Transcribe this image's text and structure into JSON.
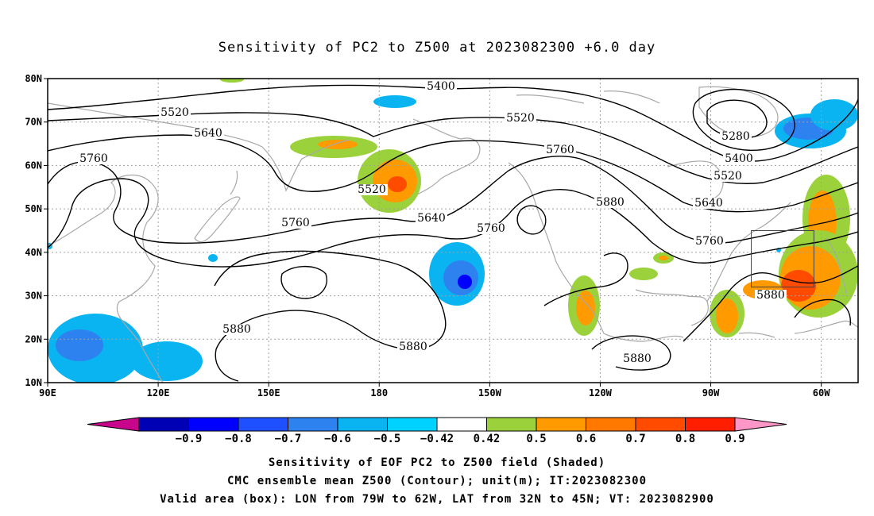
{
  "title": "Sensitivity of PC2 to Z500 at 2023082300 +6.0 day",
  "captions": [
    "Sensitivity of EOF PC2 to Z500 field (Shaded)",
    "CMC ensemble mean Z500 (Contour); unit(m); IT:2023082300",
    "Valid area (box): LON from 79W to 62W, LAT from 32N to 45N; VT: 2023082900"
  ],
  "map": {
    "lon_ticks": [
      "90E",
      "120E",
      "150E",
      "180",
      "150W",
      "120W",
      "90W",
      "60W"
    ],
    "lat_ticks": [
      "80N",
      "70N",
      "60N",
      "50N",
      "40N",
      "30N",
      "20N",
      "10N"
    ],
    "valid_box": {
      "lon_min": -79,
      "lon_max": -62,
      "lat_min": 32,
      "lat_max": 45
    },
    "contour_labels": [
      "5400",
      "5520",
      "5520",
      "5640",
      "5760",
      "5760",
      "5520",
      "5640",
      "5760",
      "5760",
      "5880",
      "5280",
      "5400",
      "5520",
      "5640",
      "5760",
      "5880",
      "5880",
      "5880",
      "5880"
    ],
    "grid": true
  },
  "colorbar": {
    "labels": [
      "-0.9",
      "-0.8",
      "-0.7",
      "-0.6",
      "-0.5",
      "-0.42",
      "0.42",
      "0.5",
      "0.6",
      "0.7",
      "0.8",
      "0.9"
    ],
    "colors": [
      "#c8068c",
      "#0000b4",
      "#0000ff",
      "#1e50ff",
      "#2d82f0",
      "#0ab4f0",
      "#00d2ff",
      "#ffffff",
      "#9bd23c",
      "#ff9b00",
      "#ff7800",
      "#ff4b00",
      "#ff1e00",
      "#ff96c8"
    ],
    "shade_colors": {
      "neg_light": "#0ab4f0",
      "neg_mid": "#2d82f0",
      "neg_dark": "#0000ff",
      "pos_light": "#9bd23c",
      "pos_mid": "#ff9b00",
      "pos_dark": "#ff4b00"
    }
  }
}
